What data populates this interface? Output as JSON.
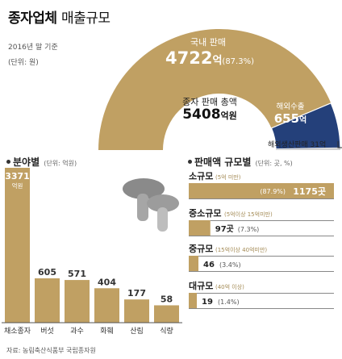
{
  "title": "종자업체",
  "title_sub": "매출규모",
  "basis": "2016년 말 기준",
  "unit_main": "(단위: 원)",
  "gauge": {
    "domestic_label": "국내 판매",
    "domestic_value": "4722",
    "domestic_unit": "억",
    "domestic_pct": "(87.3%)",
    "total_label": "종자 판매 총액",
    "total_value": "5408",
    "total_unit": "억원",
    "export_label": "해외수출",
    "export_value": "655",
    "export_unit": "억",
    "overseas_label": "해외생산판매 31억"
  },
  "by_field": {
    "title": "분야별",
    "unit": "(단위: 억원)",
    "unit_label": "억원"
  },
  "by_size": {
    "title": "판매액 규모별",
    "unit": "(단위: 곳, %)",
    "items": [
      {
        "name": "소규모",
        "range": "(5억 미만)",
        "count": "1175곳",
        "pct": "(87.9%)"
      },
      {
        "name": "중소규모",
        "range": "(5억이상 15억미만)",
        "count": "97곳",
        "pct": "(7.3%)"
      },
      {
        "name": "중규모",
        "range": "(15억이상 40억미만)",
        "count": "46",
        "pct": "(3.4%)"
      },
      {
        "name": "대규모",
        "range": "(40억 이상)",
        "count": "19",
        "pct": "(1.4%)"
      }
    ]
  },
  "source": "자료: 농림축산식품부 국립종자원",
  "colors": {
    "gold": "#c0a063",
    "gold_dark": "#a8874a",
    "navy": "#24407a",
    "grey": "#d9d9d9"
  },
  "chart_data": [
    {
      "type": "pie",
      "title": "",
      "slices": [
        {
          "label": "국내 판매",
          "value": 4722,
          "pct": 87.3
        },
        {
          "label": "해외수출",
          "value": 655
        },
        {
          "label": "해외생산판매",
          "value": 31
        }
      ],
      "total": 5408
    },
    {
      "type": "bar",
      "title": "분야별",
      "categories": [
        "채소종자",
        "버섯",
        "과수",
        "화훼",
        "산림",
        "식량"
      ],
      "values": [
        3371,
        605,
        571,
        404,
        177,
        58
      ]
    },
    {
      "type": "bar",
      "title": "판매액 규모별",
      "categories": [
        "소규모",
        "중소규모",
        "중규모",
        "대규모"
      ],
      "values": [
        1175,
        97,
        46,
        19
      ],
      "percent": [
        87.9,
        7.3,
        3.4,
        1.4
      ]
    }
  ]
}
